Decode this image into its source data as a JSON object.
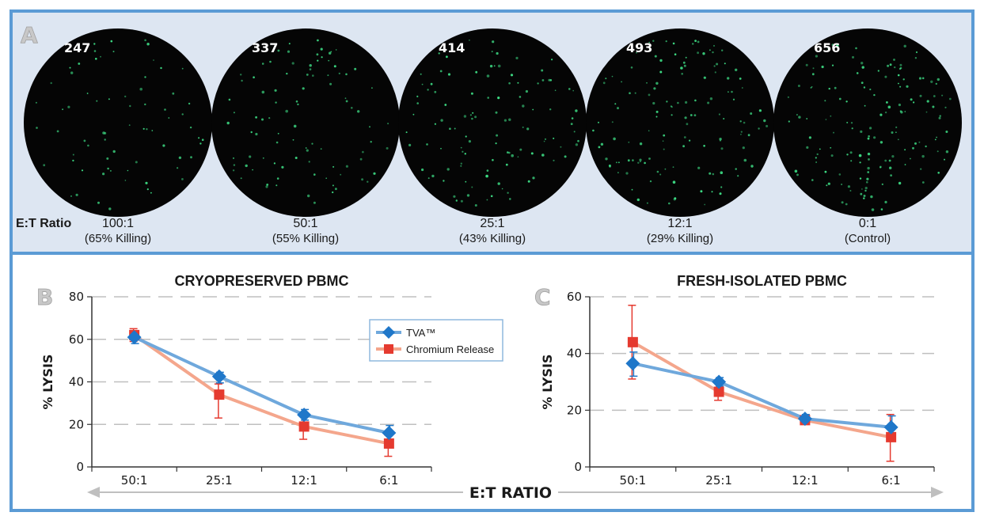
{
  "colors": {
    "frame": "#5b9bd5",
    "panel_a_bg": "#dde6f2",
    "tva": "#6fa8dc",
    "tva_marker": "#1f77c9",
    "chromium": "#f4a68c",
    "chromium_marker": "#e53a2f",
    "cell": "#3ddc84",
    "gridline": "#bfbfbf",
    "arrow": "#bfbfbf"
  },
  "panel_a": {
    "letter": "A",
    "row_label": "E:T Ratio",
    "wells": [
      {
        "count": "247",
        "ratio": "100:1",
        "note": "(65% Killing)"
      },
      {
        "count": "337",
        "ratio": "50:1",
        "note": "(55% Killing)"
      },
      {
        "count": "414",
        "ratio": "25:1",
        "note": "(43% Killing)"
      },
      {
        "count": "493",
        "ratio": "12:1",
        "note": "(29% Killing)"
      },
      {
        "count": "656",
        "ratio": "0:1",
        "note": "(Control)"
      }
    ]
  },
  "shared_xlabel": "E:T RATIO",
  "chart_data": [
    {
      "panel": "B",
      "type": "line",
      "title": "CRYOPRESERVED PBMC",
      "ylabel": "% LYSIS",
      "xlabel": "",
      "categories": [
        "50:1",
        "25:1",
        "12:1",
        "6:1"
      ],
      "ylim": [
        0,
        80
      ],
      "yticks": [
        0,
        20,
        40,
        60,
        80
      ],
      "grid": true,
      "legend": "top-right",
      "series": [
        {
          "name": "TVA™",
          "values": [
            61,
            42.5,
            24.5,
            16
          ],
          "err_low": [
            3,
            3,
            2.5,
            4
          ],
          "err_high": [
            3,
            2,
            2.5,
            3.5
          ],
          "marker": "diamond"
        },
        {
          "name": "Chromium Release",
          "values": [
            62,
            34,
            19,
            11
          ],
          "err_low": [
            3,
            11,
            6,
            6
          ],
          "err_high": [
            3,
            5,
            5,
            4
          ],
          "marker": "square"
        }
      ]
    },
    {
      "panel": "C",
      "type": "line",
      "title": "FRESH-ISOLATED PBMC",
      "ylabel": "% LYSIS",
      "xlabel": "",
      "categories": [
        "50:1",
        "25:1",
        "12:1",
        "6:1"
      ],
      "ylim": [
        0,
        60
      ],
      "yticks": [
        0,
        20,
        40,
        60
      ],
      "grid": true,
      "legend": "",
      "series": [
        {
          "name": "TVA™",
          "values": [
            36.5,
            30,
            17,
            14
          ],
          "err_low": [
            4.5,
            1.5,
            1.5,
            3
          ],
          "err_high": [
            4,
            1.5,
            1.5,
            4
          ],
          "marker": "diamond"
        },
        {
          "name": "Chromium Release",
          "values": [
            44,
            26.5,
            16.5,
            10.5
          ],
          "err_low": [
            13,
            3,
            1.5,
            8.5
          ],
          "err_high": [
            13,
            3,
            1.5,
            8
          ],
          "marker": "square"
        }
      ]
    }
  ]
}
